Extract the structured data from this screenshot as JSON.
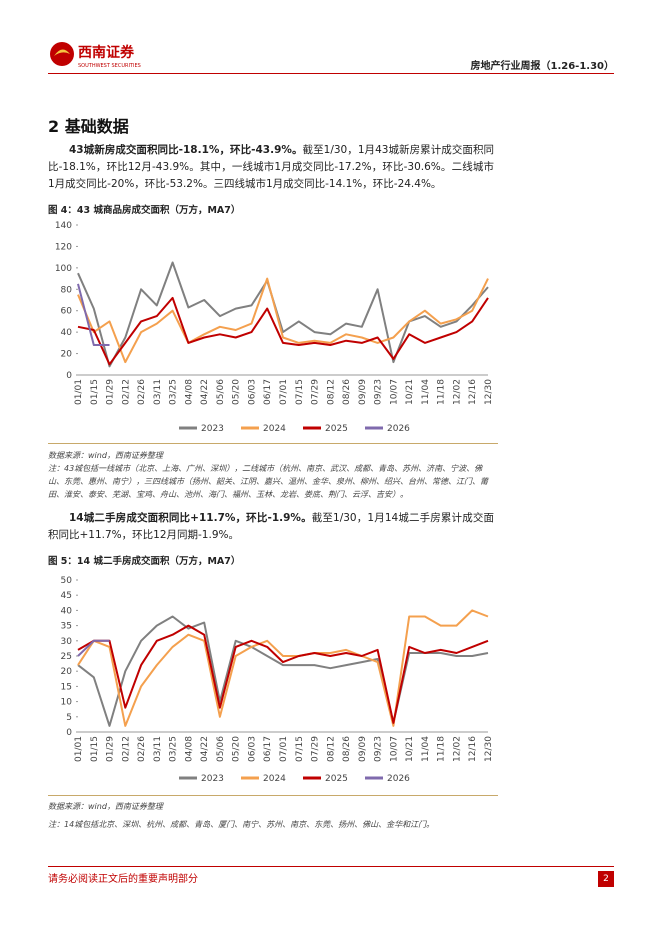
{
  "header": {
    "logo_text": "西南证券",
    "logo_sub": "SOUTHWEST SECURITIES",
    "report_title": "房地产行业周报（1.26-1.30）"
  },
  "section": {
    "title": "2 基础数据"
  },
  "paragraphs": [
    {
      "bold": "43城新房成交面积同比-18.1%，环比-43.9%。",
      "text": "截至1/30，1月43城新房累计成交面积同比-18.1%，环比12月-43.9%。其中，一线城市1月成交同比-17.2%，环比-30.6%。二线城市1月成交同比-20%，环比-53.2%。三四线城市1月成交同比-14.1%，环比-24.4%。"
    },
    {
      "bold": "14城二手房成交面积同比+11.7%，环比-1.9%。",
      "text": "截至1/30，1月14城二手房累计成交面积同比+11.7%，环比12月同期-1.9%。"
    }
  ],
  "figures": [
    {
      "title": "图 4：43 城商品房成交面积（万方，MA7）",
      "source": "数据来源：wind，西南证券整理",
      "note": "注：43城包括一线城市（北京、上海、广州、深圳），二线城市（杭州、南京、武汉、成都、青岛、苏州、济南、宁波、佛山、东莞、惠州、南宁），三四线城市（扬州、韶关、江阴、嘉兴、温州、金华、泉州、柳州、绍兴、台州、常德、江门、莆田、淮安、泰安、芜湖、宝鸡、舟山、池州、海门、福州、玉林、龙岩、娄底、荆门、云浮、吉安）。",
      "chart_data": {
        "type": "line",
        "categories": [
          "01/01",
          "01/15",
          "01/29",
          "02/12",
          "02/26",
          "03/11",
          "03/25",
          "04/08",
          "04/22",
          "05/06",
          "05/20",
          "06/03",
          "06/17",
          "07/01",
          "07/15",
          "07/29",
          "08/12",
          "08/26",
          "09/09",
          "09/23",
          "10/07",
          "10/21",
          "11/04",
          "11/18",
          "12/02",
          "12/16",
          "12/30"
        ],
        "ylim": [
          0,
          140
        ],
        "yticks": [
          0,
          20,
          40,
          60,
          80,
          100,
          120,
          140
        ],
        "series": [
          {
            "name": "2023",
            "color": "#808080",
            "values": [
              95,
              62,
              8,
              35,
              80,
              65,
              105,
              63,
              70,
              55,
              62,
              65,
              88,
              40,
              50,
              40,
              38,
              48,
              45,
              80,
              12,
              50,
              55,
              45,
              50,
              65,
              82
            ]
          },
          {
            "name": "2024",
            "color": "#f4a04e",
            "values": [
              75,
              40,
              50,
              12,
              40,
              48,
              60,
              30,
              38,
              45,
              42,
              48,
              90,
              35,
              30,
              32,
              30,
              38,
              35,
              30,
              35,
              50,
              60,
              48,
              52,
              60,
              90
            ]
          },
          {
            "name": "2025",
            "color": "#c00000",
            "values": [
              45,
              42,
              10,
              30,
              50,
              55,
              72,
              30,
              35,
              38,
              35,
              40,
              62,
              30,
              28,
              30,
              28,
              32,
              30,
              35,
              15,
              38,
              30,
              35,
              40,
              50,
              72
            ]
          },
          {
            "name": "2026",
            "color": "#7f6aad",
            "values": [
              85,
              28,
              28,
              null,
              null,
              null,
              null,
              null,
              null,
              null,
              null,
              null,
              null,
              null,
              null,
              null,
              null,
              null,
              null,
              null,
              null,
              null,
              null,
              null,
              null,
              null,
              null
            ]
          }
        ]
      }
    },
    {
      "title": "图 5：14 城二手房成交面积（万方，MA7）",
      "source": "数据来源：wind，西南证券整理",
      "note": "注：14城包括北京、深圳、杭州、成都、青岛、厦门、南宁、苏州、南京、东莞、扬州、佛山、金华和江门。",
      "chart_data": {
        "type": "line",
        "categories": [
          "01/01",
          "01/15",
          "01/29",
          "02/12",
          "02/26",
          "03/11",
          "03/25",
          "04/08",
          "04/22",
          "05/06",
          "05/20",
          "06/03",
          "06/17",
          "07/01",
          "07/15",
          "07/29",
          "08/12",
          "08/26",
          "09/09",
          "09/23",
          "10/07",
          "10/21",
          "11/04",
          "11/18",
          "12/02",
          "12/16",
          "12/30"
        ],
        "ylim": [
          0,
          50
        ],
        "yticks": [
          0,
          5,
          10,
          15,
          20,
          25,
          30,
          35,
          40,
          45,
          50
        ],
        "series": [
          {
            "name": "2023",
            "color": "#808080",
            "values": [
              22,
              18,
              2,
              20,
              30,
              35,
              38,
              34,
              36,
              10,
              30,
              28,
              25,
              22,
              22,
              22,
              21,
              22,
              23,
              24,
              3,
              26,
              26,
              26,
              25,
              25,
              26
            ]
          },
          {
            "name": "2024",
            "color": "#f4a04e",
            "values": [
              22,
              30,
              28,
              2,
              15,
              22,
              28,
              32,
              30,
              5,
              25,
              28,
              30,
              25,
              25,
              26,
              26,
              27,
              25,
              23,
              2,
              38,
              38,
              35,
              35,
              40,
              38
            ]
          },
          {
            "name": "2025",
            "color": "#c00000",
            "values": [
              27,
              30,
              30,
              8,
              22,
              30,
              32,
              35,
              32,
              8,
              28,
              30,
              28,
              23,
              25,
              26,
              25,
              26,
              25,
              27,
              3,
              28,
              26,
              27,
              26,
              28,
              30
            ]
          },
          {
            "name": "2026",
            "color": "#7f6aad",
            "values": [
              25,
              30,
              30,
              null,
              null,
              null,
              null,
              null,
              null,
              null,
              null,
              null,
              null,
              null,
              null,
              null,
              null,
              null,
              null,
              null,
              null,
              null,
              null,
              null,
              null,
              null,
              null
            ]
          }
        ]
      }
    }
  ],
  "footer": {
    "disclaimer": "请务必阅读正文后的重要声明部分",
    "page": "2"
  }
}
